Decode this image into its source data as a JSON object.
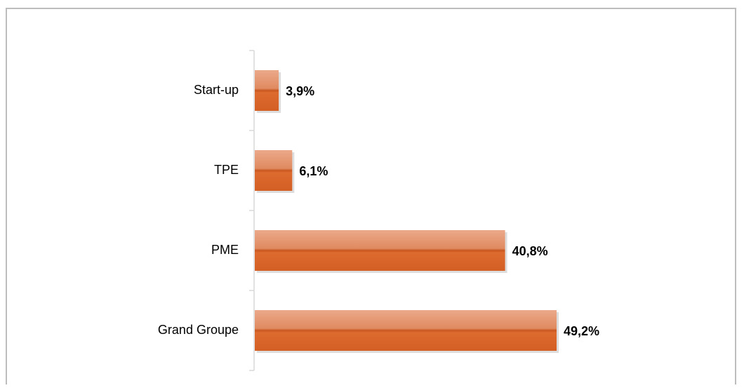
{
  "chart_data": {
    "type": "barh",
    "categories": [
      "Start-up",
      "TPE",
      "PME",
      "Grand Groupe"
    ],
    "values": [
      3.9,
      6.1,
      40.8,
      49.2
    ],
    "value_labels": [
      "3,9%",
      "6,1%",
      "40,8%",
      "49,2%"
    ],
    "color": "#d9652a"
  }
}
